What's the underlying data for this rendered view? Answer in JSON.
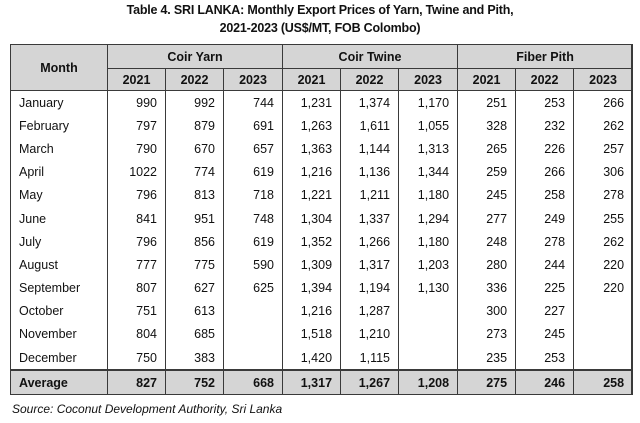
{
  "title_line1": "Table 4. SRI LANKA: Monthly Export Prices of Yarn, Twine and Pith,",
  "title_line2": "2021-2023 (US$/MT, FOB Colombo)",
  "month_header": "Month",
  "groups": [
    "Coir Yarn",
    "Coir Twine",
    "Fiber Pith"
  ],
  "years": [
    "2021",
    "2022",
    "2023",
    "2021",
    "2022",
    "2023",
    "2021",
    "2022",
    "2023"
  ],
  "rows": [
    {
      "month": "January",
      "v": [
        "990",
        "992",
        "744",
        "1,231",
        "1,374",
        "1,170",
        "251",
        "253",
        "266"
      ]
    },
    {
      "month": "February",
      "v": [
        "797",
        "879",
        "691",
        "1,263",
        "1,611",
        "1,055",
        "328",
        "232",
        "262"
      ]
    },
    {
      "month": "March",
      "v": [
        "790",
        "670",
        "657",
        "1,363",
        "1,144",
        "1,313",
        "265",
        "226",
        "257"
      ]
    },
    {
      "month": "April",
      "v": [
        "1022",
        "774",
        "619",
        "1,216",
        "1,136",
        "1,344",
        "259",
        "266",
        "306"
      ]
    },
    {
      "month": "May",
      "v": [
        "796",
        "813",
        "718",
        "1,221",
        "1,211",
        "1,180",
        "245",
        "258",
        "278"
      ]
    },
    {
      "month": "June",
      "v": [
        "841",
        "951",
        "748",
        "1,304",
        "1,337",
        "1,294",
        "277",
        "249",
        "255"
      ]
    },
    {
      "month": "July",
      "v": [
        "796",
        "856",
        "619",
        "1,352",
        "1,266",
        "1,180",
        "248",
        "278",
        "262"
      ]
    },
    {
      "month": "August",
      "v": [
        "777",
        "775",
        "590",
        "1,309",
        "1,317",
        "1,203",
        "280",
        "244",
        "220"
      ]
    },
    {
      "month": "September",
      "v": [
        "807",
        "627",
        "625",
        "1,394",
        "1,194",
        "1,130",
        "336",
        "225",
        "220"
      ]
    },
    {
      "month": "October",
      "v": [
        "751",
        "613",
        "",
        "1,216",
        "1,287",
        "",
        "300",
        "227",
        ""
      ]
    },
    {
      "month": "November",
      "v": [
        "804",
        "685",
        "",
        "1,518",
        "1,210",
        "",
        "273",
        "245",
        ""
      ]
    },
    {
      "month": "December",
      "v": [
        "750",
        "383",
        "",
        "1,420",
        "1,115",
        "",
        "235",
        "253",
        ""
      ]
    }
  ],
  "average": {
    "label": "Average",
    "v": [
      "827",
      "752",
      "668",
      "1,317",
      "1,267",
      "1,208",
      "275",
      "246",
      "258"
    ]
  },
  "source": "Source: Coconut Development Authority, Sri Lanka"
}
